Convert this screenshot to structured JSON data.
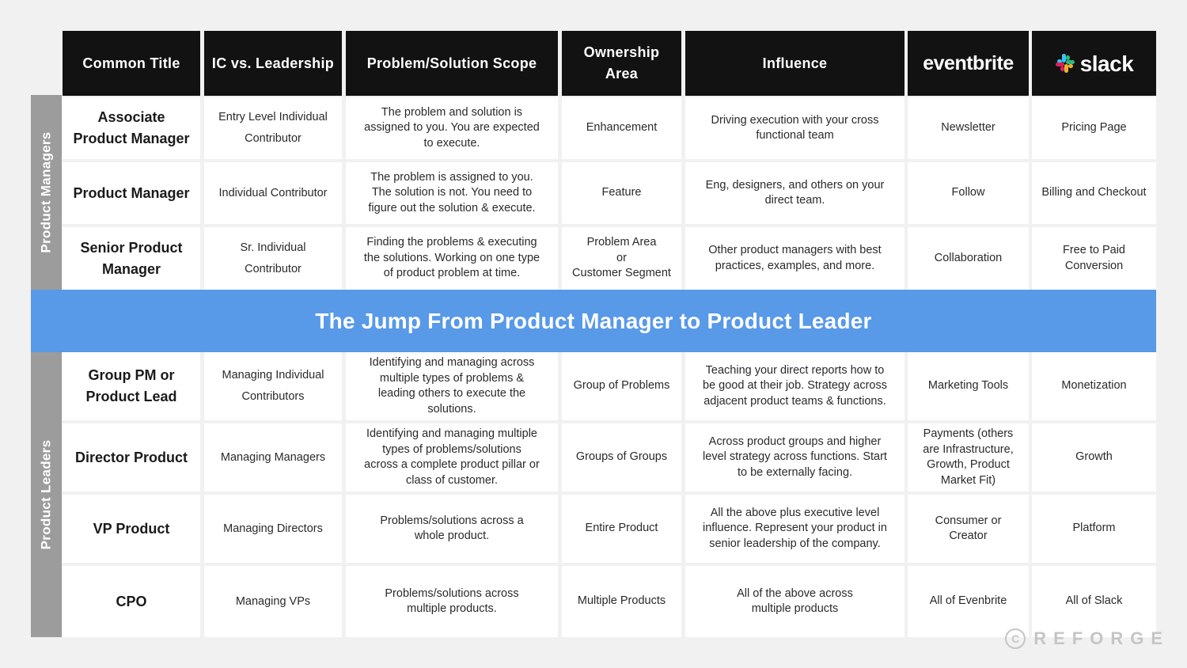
{
  "headers": {
    "common_title": "Common Title",
    "ic_vs_leadership": "IC vs. Leadership",
    "scope": "Problem/Solution Scope",
    "ownership_line1": "Ownership",
    "ownership_line2": "Area",
    "influence": "Influence",
    "eventbrite_logo": "eventbrite",
    "slack_logo": "slack"
  },
  "groups": {
    "managers": "Product Managers",
    "leaders": "Product Leaders"
  },
  "banner": "The Jump From Product Manager to Product Leader",
  "rows": [
    {
      "title": [
        "Associate",
        "Product Manager"
      ],
      "ic": [
        "Entry Level Individual",
        "Contributor"
      ],
      "scope": [
        "The problem and solution is",
        "assigned to you. You are expected",
        "to execute."
      ],
      "ownership": [
        "Enhancement"
      ],
      "influence": [
        "Driving execution with your cross",
        "functional team"
      ],
      "eventbrite": [
        "Newsletter"
      ],
      "slack": [
        "Pricing Page"
      ]
    },
    {
      "title": [
        "Product Manager"
      ],
      "ic": [
        "Individual Contributor"
      ],
      "scope": [
        "The problem is assigned to you.",
        "The solution is not. You need to",
        "figure out the solution & execute."
      ],
      "ownership": [
        "Feature"
      ],
      "influence": [
        "Eng, designers, and others on your",
        "direct team."
      ],
      "eventbrite": [
        "Follow"
      ],
      "slack": [
        "Billing and Checkout"
      ]
    },
    {
      "title": [
        "Senior Product",
        "Manager"
      ],
      "ic": [
        "Sr. Individual",
        "Contributor"
      ],
      "scope": [
        "Finding the problems & executing",
        "the solutions. Working on one type",
        "of product problem at time."
      ],
      "ownership": [
        "Problem Area",
        "or",
        "Customer Segment"
      ],
      "influence": [
        "Other product managers with best",
        "practices, examples, and more."
      ],
      "eventbrite": [
        "Collaboration"
      ],
      "slack": [
        "Free to Paid",
        "Conversion"
      ]
    },
    {
      "title": [
        "Group PM or",
        "Product Lead"
      ],
      "ic": [
        "Managing Individual",
        "Contributors"
      ],
      "scope": [
        "Identifying and managing across",
        "multiple types of problems &",
        "leading others to execute the",
        "solutions."
      ],
      "ownership": [
        "Group of Problems"
      ],
      "influence": [
        "Teaching your direct reports how to",
        "be good at their job. Strategy across",
        "adjacent product teams & functions."
      ],
      "eventbrite": [
        "Marketing Tools"
      ],
      "slack": [
        "Monetization"
      ]
    },
    {
      "title": [
        "Director Product"
      ],
      "ic": [
        "Managing Managers"
      ],
      "scope": [
        "Identifying and managing multiple",
        "types of problems/solutions",
        "across a complete product pillar or",
        "class of customer."
      ],
      "ownership": [
        "Groups of Groups"
      ],
      "influence": [
        "Across product groups and higher",
        "level strategy across functions. Start",
        "to be externally facing."
      ],
      "eventbrite": [
        "Payments (others",
        "are Infrastructure,",
        "Growth, Product",
        "Market Fit)"
      ],
      "slack": [
        "Growth"
      ]
    },
    {
      "title": [
        "VP Product"
      ],
      "ic": [
        "Managing Directors"
      ],
      "scope": [
        "Problems/solutions across a",
        "whole product."
      ],
      "ownership": [
        "Entire Product"
      ],
      "influence": [
        "All the above plus executive level",
        "influence. Represent your product in",
        "senior leadership of the company."
      ],
      "eventbrite": [
        "Consumer or Creator"
      ],
      "slack": [
        "Platform"
      ]
    },
    {
      "title": [
        "CPO"
      ],
      "ic": [
        "Managing VPs"
      ],
      "scope": [
        "Problems/solutions across",
        "multiple products."
      ],
      "ownership": [
        "Multiple Products"
      ],
      "influence": [
        "All of the above across",
        "multiple products"
      ],
      "eventbrite": [
        "All of Evenbrite"
      ],
      "slack": [
        "All of Slack"
      ]
    }
  ],
  "watermark": {
    "symbol": "C",
    "word": "REFORGE"
  },
  "colors": {
    "header_bg": "#121212",
    "banner_bg": "#5899e8",
    "group_label_bg": "#9c9c9c",
    "page_bg": "#f1f1f1",
    "slack_blue": "#36c5f0",
    "slack_green": "#2eb67d",
    "slack_yellow": "#ecb22e",
    "slack_red": "#e01e5a"
  }
}
